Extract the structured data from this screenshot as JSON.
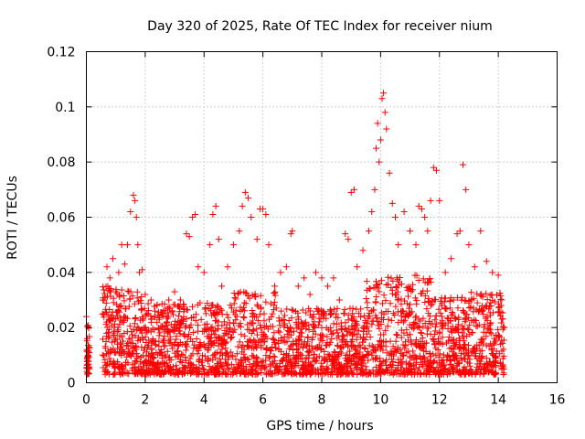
{
  "chart_data": {
    "type": "scatter",
    "title": "Day 320 of 2025, Rate Of TEC Index for receiver nium",
    "xlabel": "GPS time / hours",
    "ylabel": "ROTI / TECUs",
    "xlim": [
      0,
      16
    ],
    "ylim": [
      0,
      0.12
    ],
    "xticks": [
      0,
      2,
      4,
      6,
      8,
      10,
      12,
      14,
      16
    ],
    "yticks": [
      0,
      0.02,
      0.04,
      0.06,
      0.08,
      0.1,
      0.12
    ],
    "xtick_labels": [
      "0",
      "2",
      "4",
      "6",
      "8",
      "10",
      "12",
      "14",
      "16"
    ],
    "ytick_labels": [
      "0",
      "0.02",
      "0.04",
      "0.06",
      "0.08",
      "0.1",
      "0.12"
    ],
    "grid": true,
    "marker": "+",
    "color": "#ff0000",
    "series": [
      {
        "name": "ROTI",
        "x": [
          0.0,
          0.02,
          0.05,
          0.08,
          0.1,
          0.03,
          0.06,
          0.55,
          0.6,
          0.7,
          0.8,
          0.9,
          1.0,
          1.1,
          1.2,
          1.3,
          1.4,
          1.5,
          1.6,
          1.65,
          1.7,
          1.75,
          1.8,
          1.9,
          2.0,
          2.2,
          2.4,
          2.6,
          2.8,
          3.0,
          3.2,
          3.4,
          3.5,
          3.6,
          3.7,
          3.8,
          4.0,
          4.2,
          4.3,
          4.4,
          4.5,
          4.6,
          4.8,
          5.0,
          5.2,
          5.3,
          5.4,
          5.5,
          5.6,
          5.8,
          5.9,
          6.0,
          6.1,
          6.2,
          6.4,
          6.6,
          6.8,
          6.95,
          7.0,
          7.2,
          7.4,
          7.6,
          7.8,
          8.0,
          8.2,
          8.4,
          8.6,
          8.8,
          8.9,
          9.0,
          9.1,
          9.2,
          9.4,
          9.6,
          9.7,
          9.8,
          9.85,
          9.9,
          9.95,
          10.0,
          10.05,
          10.1,
          10.15,
          10.2,
          10.3,
          10.4,
          10.5,
          10.6,
          10.8,
          11.0,
          11.2,
          11.3,
          11.4,
          11.5,
          11.6,
          11.7,
          11.8,
          11.9,
          12.0,
          12.2,
          12.4,
          12.6,
          12.7,
          12.8,
          12.9,
          13.0,
          13.2,
          13.4,
          13.6,
          13.8,
          14.0,
          14.1,
          14.2
        ],
        "y": [
          0.024,
          0.012,
          0.008,
          0.02,
          0.005,
          0.016,
          0.01,
          0.025,
          0.03,
          0.042,
          0.038,
          0.045,
          0.033,
          0.04,
          0.05,
          0.043,
          0.05,
          0.062,
          0.068,
          0.066,
          0.06,
          0.05,
          0.04,
          0.041,
          0.032,
          0.03,
          0.028,
          0.025,
          0.03,
          0.033,
          0.03,
          0.054,
          0.053,
          0.06,
          0.061,
          0.042,
          0.04,
          0.05,
          0.061,
          0.064,
          0.052,
          0.035,
          0.042,
          0.05,
          0.055,
          0.064,
          0.069,
          0.067,
          0.06,
          0.052,
          0.063,
          0.063,
          0.061,
          0.05,
          0.035,
          0.04,
          0.042,
          0.054,
          0.055,
          0.035,
          0.038,
          0.032,
          0.04,
          0.038,
          0.035,
          0.038,
          0.03,
          0.054,
          0.052,
          0.069,
          0.07,
          0.042,
          0.048,
          0.055,
          0.062,
          0.07,
          0.085,
          0.094,
          0.08,
          0.088,
          0.103,
          0.105,
          0.098,
          0.092,
          0.076,
          0.065,
          0.06,
          0.05,
          0.062,
          0.055,
          0.05,
          0.064,
          0.063,
          0.06,
          0.055,
          0.066,
          0.078,
          0.077,
          0.066,
          0.04,
          0.045,
          0.054,
          0.055,
          0.079,
          0.07,
          0.05,
          0.042,
          0.055,
          0.044,
          0.04,
          0.039,
          0.028,
          0.02
        ]
      }
    ]
  }
}
